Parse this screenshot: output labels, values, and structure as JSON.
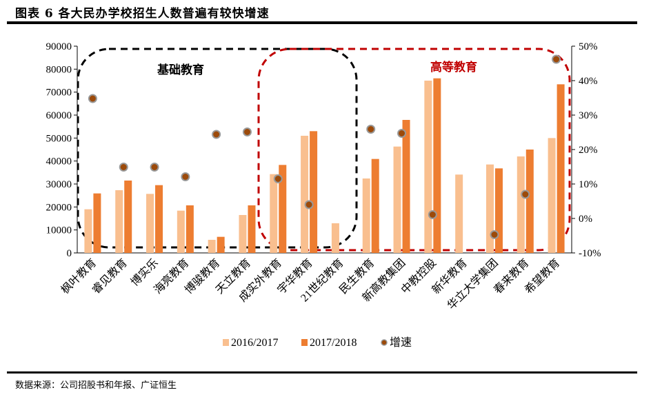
{
  "title": "图表 6 各大民办学校招生人数普遍有较快增速",
  "source": "数据来源：公司招股书和年报、广证恒生",
  "chart_data": {
    "type": "bar",
    "title": "",
    "categories": [
      "枫叶教育",
      "睿见教育",
      "博实乐",
      "海亮教育",
      "博骏教育",
      "天立教育",
      "成实外教育",
      "宇华教育",
      "21世纪教育",
      "民生教育",
      "新高教集团",
      "中教控股",
      "新华教育",
      "华立大学集团",
      "春来教育",
      "希望教育"
    ],
    "series": [
      {
        "name": "2016/2017",
        "type": "bar",
        "axis": "left",
        "color": "#F9BF8F",
        "values": [
          19000,
          27300,
          25700,
          18400,
          5700,
          16500,
          34300,
          51000,
          12900,
          32400,
          46300,
          75000,
          34100,
          38500,
          42000,
          50000
        ]
      },
      {
        "name": "2017/2018",
        "type": "bar",
        "axis": "left",
        "color": "#ED7D31",
        "values": [
          25900,
          31500,
          29500,
          20700,
          7000,
          20700,
          38300,
          53000,
          null,
          40900,
          57900,
          76000,
          null,
          36800,
          45000,
          73400
        ]
      },
      {
        "name": "增速",
        "type": "scatter",
        "axis": "right",
        "color": "#9C4A0A",
        "values": [
          34.8,
          14.9,
          14.9,
          12.1,
          24.4,
          25.1,
          11.5,
          4.0,
          null,
          25.9,
          24.7,
          1.1,
          null,
          -4.7,
          7.0,
          46.2
        ]
      }
    ],
    "y_left": {
      "range": [
        0,
        90000
      ],
      "ticks": [
        "0",
        "10000",
        "20000",
        "30000",
        "40000",
        "50000",
        "60000",
        "70000",
        "80000",
        "90000"
      ]
    },
    "y_right": {
      "range": [
        -10,
        50
      ],
      "unit": "%",
      "ticks": [
        "-10%",
        "0%",
        "10%",
        "20%",
        "30%",
        "40%",
        "50%"
      ]
    },
    "annotations": [
      {
        "text": "基础教育",
        "color": "#000000",
        "group_categories": [
          "枫叶教育",
          "21世纪教育"
        ]
      },
      {
        "text": "高等教育",
        "color": "#C00000",
        "group_categories": [
          "成实外教育",
          "希望教育"
        ]
      }
    ],
    "legend": "bottom",
    "grid": false
  }
}
